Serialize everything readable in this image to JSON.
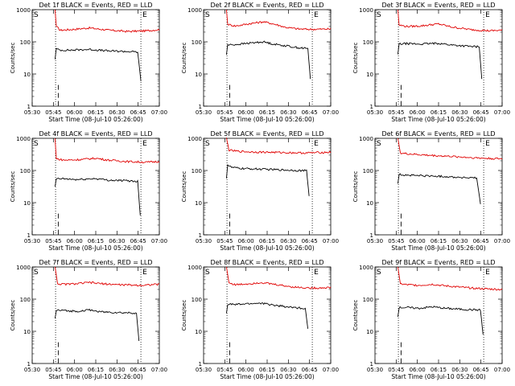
{
  "colors": {
    "events": "#000000",
    "lld": "#e00000",
    "axes": "#000000",
    "background": "#ffffff"
  },
  "axis_labels": {
    "x": "Start Time (08-Jul-10 05:26:00)",
    "y": "Counts/sec"
  },
  "chart_data": [
    {
      "type": "line",
      "title": "Det 1f BLACK = Events, RED = LLD",
      "x_ticks": [
        "05:30",
        "05:45",
        "06:00",
        "06:15",
        "06:30",
        "06:45",
        "07:00"
      ],
      "y_ticks": [
        "1",
        "10",
        "100",
        "1000"
      ],
      "ylim": [
        1,
        1000
      ],
      "scale_y": "log",
      "markers": {
        "start_label": "S",
        "end_label": "E"
      },
      "series": [
        {
          "name": "RED = LLD",
          "color": "#e00000",
          "values": [
            [
              0.18,
              1000
            ],
            [
              0.19,
              300
            ],
            [
              0.22,
              230
            ],
            [
              0.3,
              240
            ],
            [
              0.45,
              270
            ],
            [
              0.6,
              230
            ],
            [
              0.75,
              210
            ],
            [
              0.9,
              220
            ],
            [
              1.0,
              240
            ]
          ]
        },
        {
          "name": "BLACK = Events",
          "color": "#000000",
          "values": [
            [
              0.18,
              30
            ],
            [
              0.19,
              60
            ],
            [
              0.22,
              55
            ],
            [
              0.3,
              55
            ],
            [
              0.45,
              58
            ],
            [
              0.6,
              52
            ],
            [
              0.75,
              50
            ],
            [
              0.83,
              48
            ],
            [
              0.855,
              6
            ]
          ]
        }
      ]
    },
    {
      "type": "line",
      "title": "Det 2f BLACK = Events, RED = LLD",
      "x_ticks": [
        "05:30",
        "05:45",
        "06:00",
        "06:15",
        "06:30",
        "06:45",
        "07:00"
      ],
      "y_ticks": [
        "1",
        "10",
        "100",
        "1000"
      ],
      "ylim": [
        1,
        1000
      ],
      "scale_y": "log",
      "markers": {
        "start_label": "S",
        "end_label": "E"
      },
      "series": [
        {
          "name": "RED = LLD",
          "color": "#e00000",
          "values": [
            [
              0.18,
              1000
            ],
            [
              0.19,
              350
            ],
            [
              0.25,
              310
            ],
            [
              0.35,
              360
            ],
            [
              0.47,
              420
            ],
            [
              0.55,
              360
            ],
            [
              0.65,
              280
            ],
            [
              0.75,
              250
            ],
            [
              0.85,
              245
            ],
            [
              1.0,
              250
            ]
          ]
        },
        {
          "name": "BLACK = Events",
          "color": "#000000",
          "values": [
            [
              0.18,
              40
            ],
            [
              0.19,
              80
            ],
            [
              0.25,
              82
            ],
            [
              0.35,
              90
            ],
            [
              0.47,
              100
            ],
            [
              0.55,
              85
            ],
            [
              0.65,
              75
            ],
            [
              0.75,
              65
            ],
            [
              0.82,
              62
            ],
            [
              0.84,
              7
            ]
          ]
        }
      ]
    },
    {
      "type": "line",
      "title": "Det 3f BLACK = Events, RED = LLD",
      "x_ticks": [
        "05:30",
        "05:45",
        "06:00",
        "06:15",
        "06:30",
        "06:45",
        "07:00"
      ],
      "y_ticks": [
        "1",
        "10",
        "100",
        "1000"
      ],
      "ylim": [
        1,
        1000
      ],
      "scale_y": "log",
      "markers": {
        "start_label": "S",
        "end_label": "E"
      },
      "series": [
        {
          "name": "RED = LLD",
          "color": "#e00000",
          "values": [
            [
              0.18,
              1000
            ],
            [
              0.19,
              330
            ],
            [
              0.25,
              300
            ],
            [
              0.35,
              310
            ],
            [
              0.5,
              360
            ],
            [
              0.6,
              290
            ],
            [
              0.75,
              240
            ],
            [
              0.9,
              220
            ],
            [
              1.0,
              230
            ]
          ]
        },
        {
          "name": "BLACK = Events",
          "color": "#000000",
          "values": [
            [
              0.18,
              40
            ],
            [
              0.19,
              85
            ],
            [
              0.25,
              88
            ],
            [
              0.35,
              85
            ],
            [
              0.5,
              90
            ],
            [
              0.6,
              80
            ],
            [
              0.75,
              72
            ],
            [
              0.82,
              70
            ],
            [
              0.84,
              7
            ]
          ]
        }
      ]
    },
    {
      "type": "line",
      "title": "Det 4f BLACK = Events, RED = LLD",
      "x_ticks": [
        "05:30",
        "05:45",
        "06:00",
        "06:15",
        "06:30",
        "06:45",
        "07:00"
      ],
      "y_ticks": [
        "1",
        "10",
        "100",
        "1000"
      ],
      "ylim": [
        1,
        1000
      ],
      "scale_y": "log",
      "markers": {
        "start_label": "S",
        "end_label": "E"
      },
      "series": [
        {
          "name": "RED = LLD",
          "color": "#e00000",
          "values": [
            [
              0.18,
              1000
            ],
            [
              0.19,
              230
            ],
            [
              0.25,
              210
            ],
            [
              0.35,
              215
            ],
            [
              0.5,
              240
            ],
            [
              0.6,
              210
            ],
            [
              0.75,
              190
            ],
            [
              0.9,
              180
            ],
            [
              1.0,
              190
            ]
          ]
        },
        {
          "name": "BLACK = Events",
          "color": "#000000",
          "values": [
            [
              0.18,
              30
            ],
            [
              0.19,
              55
            ],
            [
              0.25,
              55
            ],
            [
              0.35,
              52
            ],
            [
              0.5,
              56
            ],
            [
              0.6,
              50
            ],
            [
              0.75,
              48
            ],
            [
              0.83,
              46
            ],
            [
              0.85,
              4
            ]
          ]
        }
      ]
    },
    {
      "type": "line",
      "title": "Det 5f BLACK = Events, RED = LLD",
      "x_ticks": [
        "05:30",
        "05:45",
        "06:00",
        "06:15",
        "06:30",
        "06:45",
        "07:00"
      ],
      "y_ticks": [
        "1",
        "10",
        "100",
        "1000"
      ],
      "ylim": [
        1,
        1000
      ],
      "scale_y": "log",
      "markers": {
        "start_label": "S",
        "end_label": "E"
      },
      "series": [
        {
          "name": "RED = LLD",
          "color": "#e00000",
          "values": [
            [
              0.18,
              1000
            ],
            [
              0.2,
              430
            ],
            [
              0.25,
              400
            ],
            [
              0.35,
              380
            ],
            [
              0.5,
              370
            ],
            [
              0.65,
              360
            ],
            [
              0.8,
              350
            ],
            [
              0.9,
              360
            ],
            [
              1.0,
              370
            ]
          ]
        },
        {
          "name": "BLACK = Events",
          "color": "#000000",
          "values": [
            [
              0.18,
              60
            ],
            [
              0.19,
              150
            ],
            [
              0.22,
              125
            ],
            [
              0.3,
              115
            ],
            [
              0.45,
              110
            ],
            [
              0.6,
              105
            ],
            [
              0.75,
              100
            ],
            [
              0.81,
              98
            ],
            [
              0.83,
              16
            ]
          ]
        }
      ]
    },
    {
      "type": "line",
      "title": "Det 6f BLACK = Events, RED = LLD",
      "x_ticks": [
        "05:30",
        "05:45",
        "06:00",
        "06:15",
        "06:30",
        "06:45",
        "07:00"
      ],
      "y_ticks": [
        "1",
        "10",
        "100",
        "1000"
      ],
      "ylim": [
        1,
        1000
      ],
      "scale_y": "log",
      "markers": {
        "start_label": "S",
        "end_label": "E"
      },
      "series": [
        {
          "name": "RED = LLD",
          "color": "#e00000",
          "values": [
            [
              0.18,
              1000
            ],
            [
              0.2,
              350
            ],
            [
              0.25,
              330
            ],
            [
              0.4,
              300
            ],
            [
              0.55,
              280
            ],
            [
              0.7,
              260
            ],
            [
              0.85,
              240
            ],
            [
              1.0,
              230
            ]
          ]
        },
        {
          "name": "BLACK = Events",
          "color": "#000000",
          "values": [
            [
              0.18,
              40
            ],
            [
              0.19,
              75
            ],
            [
              0.25,
              72
            ],
            [
              0.4,
              68
            ],
            [
              0.55,
              65
            ],
            [
              0.7,
              60
            ],
            [
              0.8,
              58
            ],
            [
              0.83,
              9
            ]
          ]
        }
      ]
    },
    {
      "type": "line",
      "title": "Det 7f BLACK = Events, RED = LLD",
      "x_ticks": [
        "05:30",
        "05:45",
        "06:00",
        "06:15",
        "06:30",
        "06:45",
        "07:00"
      ],
      "y_ticks": [
        "1",
        "10",
        "100",
        "1000"
      ],
      "ylim": [
        1,
        1000
      ],
      "scale_y": "log",
      "markers": {
        "start_label": "S",
        "end_label": "E"
      },
      "series": [
        {
          "name": "RED = LLD",
          "color": "#e00000",
          "values": [
            [
              0.18,
              1000
            ],
            [
              0.2,
              300
            ],
            [
              0.25,
              290
            ],
            [
              0.35,
              300
            ],
            [
              0.45,
              330
            ],
            [
              0.55,
              300
            ],
            [
              0.7,
              280
            ],
            [
              0.85,
              270
            ],
            [
              1.0,
              290
            ]
          ]
        },
        {
          "name": "BLACK = Events",
          "color": "#000000",
          "values": [
            [
              0.18,
              25
            ],
            [
              0.19,
              45
            ],
            [
              0.25,
              44
            ],
            [
              0.35,
              42
            ],
            [
              0.45,
              46
            ],
            [
              0.55,
              40
            ],
            [
              0.7,
              38
            ],
            [
              0.82,
              37
            ],
            [
              0.84,
              5
            ]
          ]
        }
      ]
    },
    {
      "type": "line",
      "title": "Det 8f BLACK = Events, RED = LLD",
      "x_ticks": [
        "05:30",
        "05:45",
        "06:00",
        "06:15",
        "06:30",
        "06:45",
        "07:00"
      ],
      "y_ticks": [
        "1",
        "10",
        "100",
        "1000"
      ],
      "ylim": [
        1,
        1000
      ],
      "scale_y": "log",
      "markers": {
        "start_label": "S",
        "end_label": "E"
      },
      "series": [
        {
          "name": "RED = LLD",
          "color": "#e00000",
          "values": [
            [
              0.18,
              1000
            ],
            [
              0.2,
              320
            ],
            [
              0.25,
              280
            ],
            [
              0.35,
              300
            ],
            [
              0.45,
              330
            ],
            [
              0.55,
              290
            ],
            [
              0.7,
              240
            ],
            [
              0.85,
              220
            ],
            [
              1.0,
              230
            ]
          ]
        },
        {
          "name": "BLACK = Events",
          "color": "#000000",
          "values": [
            [
              0.18,
              35
            ],
            [
              0.19,
              70
            ],
            [
              0.25,
              68
            ],
            [
              0.35,
              72
            ],
            [
              0.45,
              75
            ],
            [
              0.55,
              65
            ],
            [
              0.7,
              55
            ],
            [
              0.8,
              52
            ],
            [
              0.82,
              12
            ]
          ]
        }
      ]
    },
    {
      "type": "line",
      "title": "Det 9f BLACK = Events, RED = LLD",
      "x_ticks": [
        "05:30",
        "05:45",
        "06:00",
        "06:15",
        "06:30",
        "06:45",
        "07:00"
      ],
      "y_ticks": [
        "1",
        "10",
        "100",
        "1000"
      ],
      "ylim": [
        1,
        1000
      ],
      "scale_y": "log",
      "markers": {
        "start_label": "S",
        "end_label": "E"
      },
      "series": [
        {
          "name": "RED = LLD",
          "color": "#e00000",
          "values": [
            [
              0.18,
              1000
            ],
            [
              0.2,
              300
            ],
            [
              0.25,
              280
            ],
            [
              0.35,
              270
            ],
            [
              0.45,
              290
            ],
            [
              0.55,
              260
            ],
            [
              0.7,
              230
            ],
            [
              0.85,
              210
            ],
            [
              1.0,
              200
            ]
          ]
        },
        {
          "name": "BLACK = Events",
          "color": "#000000",
          "values": [
            [
              0.18,
              30
            ],
            [
              0.19,
              55
            ],
            [
              0.25,
              55
            ],
            [
              0.35,
              52
            ],
            [
              0.45,
              58
            ],
            [
              0.55,
              52
            ],
            [
              0.7,
              48
            ],
            [
              0.83,
              46
            ],
            [
              0.85,
              8
            ]
          ]
        }
      ]
    }
  ]
}
